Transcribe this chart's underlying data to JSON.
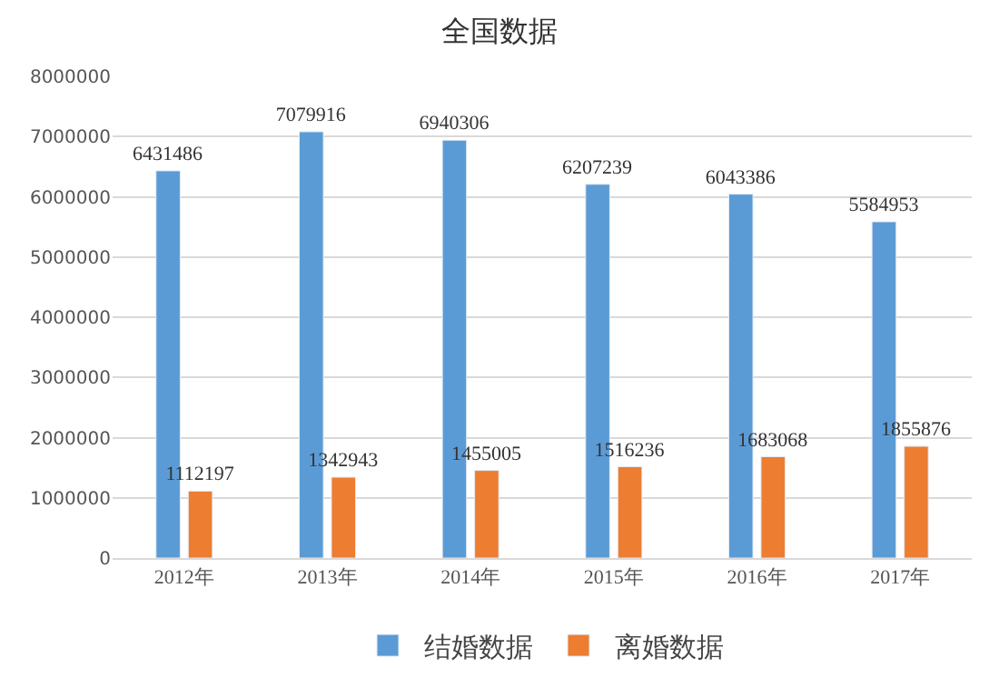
{
  "chart_data": {
    "type": "bar",
    "title": "全国数据",
    "categories": [
      "2012年",
      "2013年",
      "2014年",
      "2015年",
      "2016年",
      "2017年"
    ],
    "series": [
      {
        "name": "结婚数据",
        "color": "#5b9bd5",
        "values": [
          6431486,
          7079916,
          6940306,
          6207239,
          6043386,
          5584953
        ]
      },
      {
        "name": "离婚数据",
        "color": "#ed7d31",
        "values": [
          1112197,
          1342943,
          1455005,
          1516236,
          1683068,
          1855876
        ]
      }
    ],
    "ylim": [
      0,
      8000000
    ],
    "yticks": [
      0,
      1000000,
      2000000,
      3000000,
      4000000,
      5000000,
      6000000,
      7000000,
      8000000
    ],
    "grid": "y",
    "legend": "bottom",
    "data_labels": true
  }
}
